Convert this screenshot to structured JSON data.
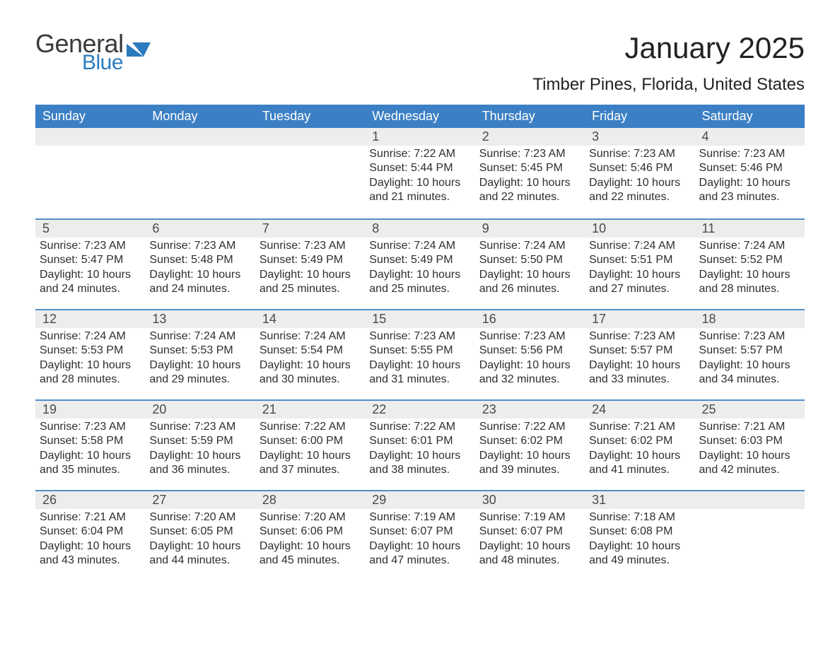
{
  "logo": {
    "word1": "General",
    "word2": "Blue"
  },
  "title": "January 2025",
  "location": "Timber Pines, Florida, United States",
  "colors": {
    "header_blue": "#3b7fc4",
    "accent_blue": "#2b7bbf",
    "row_gray": "#eceded",
    "border_blue": "#4f8fc9",
    "background": "#ffffff",
    "text": "#333333"
  },
  "typography": {
    "title_fontsize_pt": 32,
    "location_fontsize_pt": 18,
    "dow_fontsize_pt": 14,
    "body_fontsize_pt": 12,
    "font_family": "Arial"
  },
  "days_of_week": [
    "Sunday",
    "Monday",
    "Tuesday",
    "Wednesday",
    "Thursday",
    "Friday",
    "Saturday"
  ],
  "labels": {
    "sunrise": "Sunrise",
    "sunset": "Sunset",
    "daylight": "Daylight"
  },
  "weeks": [
    [
      null,
      null,
      null,
      {
        "n": 1,
        "sunrise": "7:22 AM",
        "sunset": "5:44 PM",
        "daylight": "10 hours and 21 minutes."
      },
      {
        "n": 2,
        "sunrise": "7:23 AM",
        "sunset": "5:45 PM",
        "daylight": "10 hours and 22 minutes."
      },
      {
        "n": 3,
        "sunrise": "7:23 AM",
        "sunset": "5:46 PM",
        "daylight": "10 hours and 22 minutes."
      },
      {
        "n": 4,
        "sunrise": "7:23 AM",
        "sunset": "5:46 PM",
        "daylight": "10 hours and 23 minutes."
      }
    ],
    [
      {
        "n": 5,
        "sunrise": "7:23 AM",
        "sunset": "5:47 PM",
        "daylight": "10 hours and 24 minutes."
      },
      {
        "n": 6,
        "sunrise": "7:23 AM",
        "sunset": "5:48 PM",
        "daylight": "10 hours and 24 minutes."
      },
      {
        "n": 7,
        "sunrise": "7:23 AM",
        "sunset": "5:49 PM",
        "daylight": "10 hours and 25 minutes."
      },
      {
        "n": 8,
        "sunrise": "7:24 AM",
        "sunset": "5:49 PM",
        "daylight": "10 hours and 25 minutes."
      },
      {
        "n": 9,
        "sunrise": "7:24 AM",
        "sunset": "5:50 PM",
        "daylight": "10 hours and 26 minutes."
      },
      {
        "n": 10,
        "sunrise": "7:24 AM",
        "sunset": "5:51 PM",
        "daylight": "10 hours and 27 minutes."
      },
      {
        "n": 11,
        "sunrise": "7:24 AM",
        "sunset": "5:52 PM",
        "daylight": "10 hours and 28 minutes."
      }
    ],
    [
      {
        "n": 12,
        "sunrise": "7:24 AM",
        "sunset": "5:53 PM",
        "daylight": "10 hours and 28 minutes."
      },
      {
        "n": 13,
        "sunrise": "7:24 AM",
        "sunset": "5:53 PM",
        "daylight": "10 hours and 29 minutes."
      },
      {
        "n": 14,
        "sunrise": "7:24 AM",
        "sunset": "5:54 PM",
        "daylight": "10 hours and 30 minutes."
      },
      {
        "n": 15,
        "sunrise": "7:23 AM",
        "sunset": "5:55 PM",
        "daylight": "10 hours and 31 minutes."
      },
      {
        "n": 16,
        "sunrise": "7:23 AM",
        "sunset": "5:56 PM",
        "daylight": "10 hours and 32 minutes."
      },
      {
        "n": 17,
        "sunrise": "7:23 AM",
        "sunset": "5:57 PM",
        "daylight": "10 hours and 33 minutes."
      },
      {
        "n": 18,
        "sunrise": "7:23 AM",
        "sunset": "5:57 PM",
        "daylight": "10 hours and 34 minutes."
      }
    ],
    [
      {
        "n": 19,
        "sunrise": "7:23 AM",
        "sunset": "5:58 PM",
        "daylight": "10 hours and 35 minutes."
      },
      {
        "n": 20,
        "sunrise": "7:23 AM",
        "sunset": "5:59 PM",
        "daylight": "10 hours and 36 minutes."
      },
      {
        "n": 21,
        "sunrise": "7:22 AM",
        "sunset": "6:00 PM",
        "daylight": "10 hours and 37 minutes."
      },
      {
        "n": 22,
        "sunrise": "7:22 AM",
        "sunset": "6:01 PM",
        "daylight": "10 hours and 38 minutes."
      },
      {
        "n": 23,
        "sunrise": "7:22 AM",
        "sunset": "6:02 PM",
        "daylight": "10 hours and 39 minutes."
      },
      {
        "n": 24,
        "sunrise": "7:21 AM",
        "sunset": "6:02 PM",
        "daylight": "10 hours and 41 minutes."
      },
      {
        "n": 25,
        "sunrise": "7:21 AM",
        "sunset": "6:03 PM",
        "daylight": "10 hours and 42 minutes."
      }
    ],
    [
      {
        "n": 26,
        "sunrise": "7:21 AM",
        "sunset": "6:04 PM",
        "daylight": "10 hours and 43 minutes."
      },
      {
        "n": 27,
        "sunrise": "7:20 AM",
        "sunset": "6:05 PM",
        "daylight": "10 hours and 44 minutes."
      },
      {
        "n": 28,
        "sunrise": "7:20 AM",
        "sunset": "6:06 PM",
        "daylight": "10 hours and 45 minutes."
      },
      {
        "n": 29,
        "sunrise": "7:19 AM",
        "sunset": "6:07 PM",
        "daylight": "10 hours and 47 minutes."
      },
      {
        "n": 30,
        "sunrise": "7:19 AM",
        "sunset": "6:07 PM",
        "daylight": "10 hours and 48 minutes."
      },
      {
        "n": 31,
        "sunrise": "7:18 AM",
        "sunset": "6:08 PM",
        "daylight": "10 hours and 49 minutes."
      },
      null
    ]
  ]
}
